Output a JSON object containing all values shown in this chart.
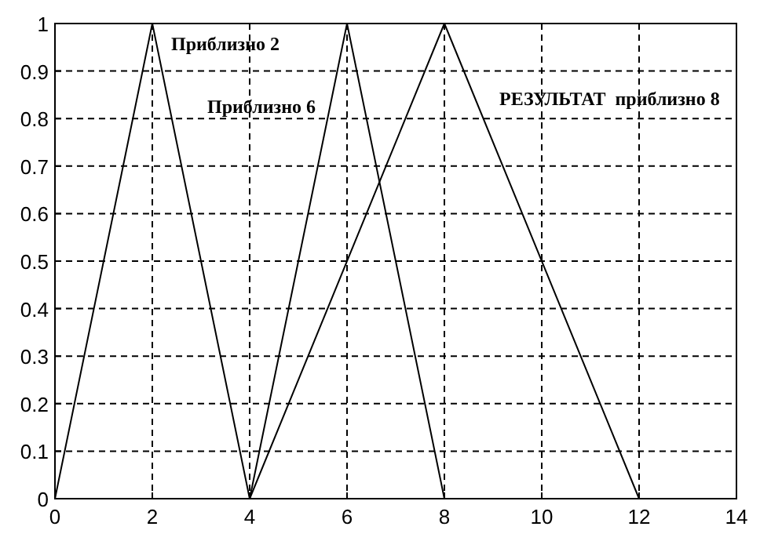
{
  "chart_data": {
    "type": "line",
    "xlim": [
      0,
      14
    ],
    "ylim": [
      0,
      1
    ],
    "xticks": [
      0,
      2,
      4,
      6,
      8,
      10,
      12,
      14
    ],
    "yticks": [
      0,
      0.1,
      0.2,
      0.3,
      0.4,
      0.5,
      0.6,
      0.7,
      0.8,
      0.9,
      1
    ],
    "grid": true,
    "line_style": "solid",
    "marker": "none",
    "legend": false,
    "series": [
      {
        "name": "Приблизно 2",
        "color": "#000000",
        "x": [
          0,
          2,
          4
        ],
        "values": [
          0,
          1,
          0
        ]
      },
      {
        "name": "Приблизно 6",
        "color": "#000000",
        "x": [
          4,
          6,
          8
        ],
        "values": [
          0,
          1,
          0
        ]
      },
      {
        "name": "РЕЗУЛЬТАТ  приблизно 8",
        "color": "#000000",
        "x": [
          4,
          8,
          12
        ],
        "values": [
          0,
          1,
          0
        ]
      }
    ]
  }
}
